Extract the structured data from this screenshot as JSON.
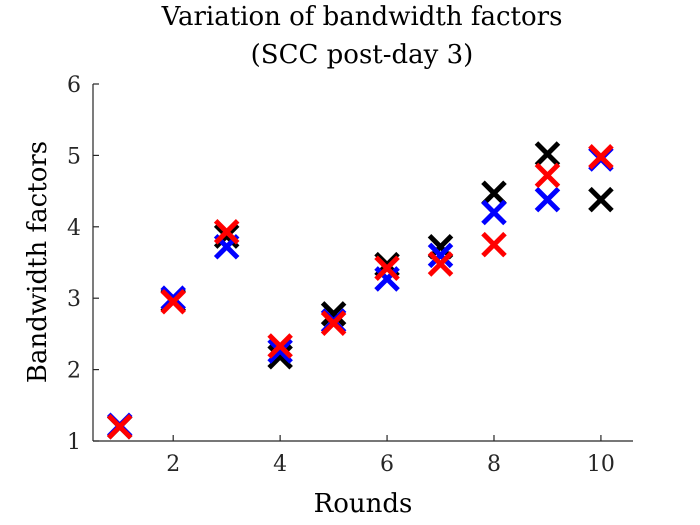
{
  "chart_data": {
    "type": "scatter",
    "title": [
      "Variation of bandwidth factors",
      "(SCC post-day 3)"
    ],
    "xlabel": "Rounds",
    "ylabel": "Bandwidth factors",
    "xlim": [
      0.5,
      10.6
    ],
    "ylim": [
      1,
      6
    ],
    "xticks": [
      2,
      4,
      6,
      8,
      10
    ],
    "yticks": [
      1,
      2,
      3,
      4,
      5,
      6
    ],
    "marker": "x",
    "grid": false,
    "box": false,
    "series": [
      {
        "color": "#000000",
        "x": [
          1,
          2,
          3,
          4,
          5,
          6,
          7,
          8,
          9,
          10
        ],
        "y": [
          1.2,
          2.97,
          3.87,
          2.18,
          2.78,
          3.47,
          3.72,
          4.47,
          5.02,
          4.38
        ]
      },
      {
        "color": "#0000ff",
        "x": [
          1,
          2,
          3,
          4,
          5,
          6,
          7,
          8,
          9,
          10
        ],
        "y": [
          1.22,
          3.0,
          3.72,
          2.26,
          2.68,
          3.27,
          3.6,
          4.2,
          4.38,
          4.95
        ]
      },
      {
        "color": "#ff0000",
        "x": [
          1,
          2,
          3,
          4,
          5,
          6,
          7,
          8,
          9,
          10
        ],
        "y": [
          1.2,
          2.95,
          3.93,
          2.33,
          2.65,
          3.42,
          3.48,
          3.75,
          4.72,
          4.98
        ]
      }
    ]
  }
}
